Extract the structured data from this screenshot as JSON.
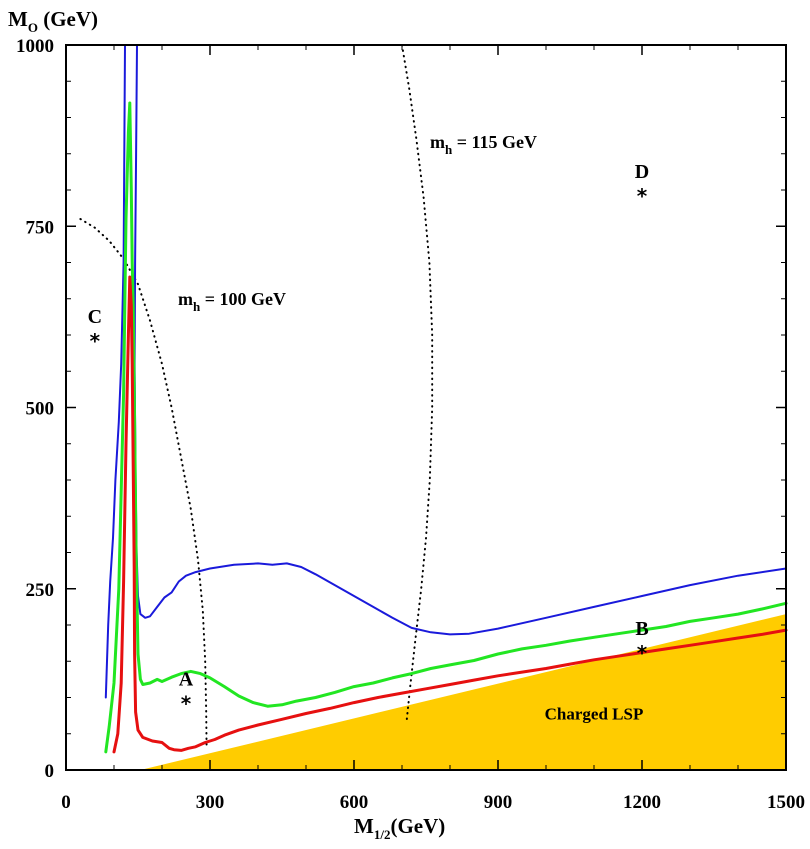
{
  "chart_data": {
    "type": "line",
    "xlabel": {
      "main": "M",
      "sub": "1/2",
      "unit": "(GeV)"
    },
    "ylabel": {
      "main": "M",
      "sub": "O",
      "unit": "(GeV)"
    },
    "xlim": [
      0,
      1500
    ],
    "ylim": [
      0,
      1000
    ],
    "xticks": [
      0,
      300,
      600,
      900,
      1200,
      1500
    ],
    "yticks": [
      0,
      250,
      500,
      750,
      1000
    ],
    "grid": false,
    "colors": {
      "blue": "#1a1adb",
      "green": "#22e622",
      "red": "#e61010",
      "fill": "#ffcc00",
      "dots": "#000000"
    },
    "series": [
      {
        "color": "#1a1adb",
        "segments": [
          [
            [
              83,
              100
            ],
            [
              88,
              200
            ],
            [
              92,
              260
            ],
            [
              98,
              320
            ],
            [
              103,
              400
            ],
            [
              110,
              480
            ],
            [
              115,
              560
            ],
            [
              120,
              700
            ],
            [
              123,
              1000
            ]
          ],
          [
            [
              148,
              1000
            ],
            [
              146,
              850
            ],
            [
              144,
              700
            ],
            [
              143,
              560
            ],
            [
              145,
              400
            ],
            [
              147,
              300
            ],
            [
              150,
              240
            ],
            [
              155,
              215
            ],
            [
              165,
              210
            ],
            [
              175,
              212
            ],
            [
              190,
              225
            ],
            [
              205,
              238
            ],
            [
              220,
              245
            ],
            [
              235,
              260
            ],
            [
              250,
              268
            ],
            [
              270,
              273
            ],
            [
              300,
              278
            ],
            [
              350,
              283
            ],
            [
              400,
              285
            ],
            [
              430,
              283
            ],
            [
              460,
              285
            ],
            [
              490,
              280
            ],
            [
              520,
              270
            ],
            [
              560,
              255
            ],
            [
              600,
              240
            ],
            [
              640,
              225
            ],
            [
              680,
              210
            ],
            [
              720,
              196
            ],
            [
              760,
              190
            ],
            [
              800,
              187
            ],
            [
              840,
              188
            ],
            [
              900,
              195
            ],
            [
              1000,
              210
            ],
            [
              1100,
              225
            ],
            [
              1200,
              240
            ],
            [
              1300,
              255
            ],
            [
              1400,
              268
            ],
            [
              1500,
              278
            ]
          ]
        ]
      },
      {
        "color": "#22e622",
        "segments": [
          [
            [
              83,
              25
            ],
            [
              90,
              60
            ],
            [
              100,
              120
            ],
            [
              110,
              250
            ],
            [
              120,
              520
            ],
            [
              125,
              760
            ],
            [
              130,
              880
            ],
            [
              133,
              920
            ],
            [
              136,
              800
            ],
            [
              138,
              700
            ],
            [
              140,
              640
            ],
            [
              143,
              480
            ],
            [
              146,
              300
            ],
            [
              150,
              160
            ],
            [
              155,
              125
            ],
            [
              160,
              118
            ],
            [
              175,
              120
            ],
            [
              190,
              125
            ],
            [
              200,
              122
            ],
            [
              220,
              128
            ],
            [
              240,
              133
            ],
            [
              260,
              136
            ],
            [
              280,
              133
            ],
            [
              300,
              127
            ],
            [
              330,
              115
            ],
            [
              360,
              102
            ],
            [
              390,
              93
            ],
            [
              420,
              88
            ],
            [
              450,
              90
            ],
            [
              480,
              95
            ],
            [
              520,
              100
            ],
            [
              560,
              107
            ],
            [
              600,
              115
            ],
            [
              640,
              120
            ],
            [
              680,
              127
            ],
            [
              720,
              133
            ],
            [
              760,
              140
            ],
            [
              800,
              145
            ],
            [
              850,
              151
            ],
            [
              900,
              160
            ],
            [
              950,
              167
            ],
            [
              1000,
              172
            ],
            [
              1050,
              178
            ],
            [
              1100,
              183
            ],
            [
              1150,
              188
            ],
            [
              1200,
              193
            ],
            [
              1250,
              198
            ],
            [
              1300,
              205
            ],
            [
              1350,
              210
            ],
            [
              1400,
              215
            ],
            [
              1450,
              222
            ],
            [
              1500,
              230
            ]
          ]
        ]
      },
      {
        "color": "#e61010",
        "segments": [
          [
            [
              100,
              25
            ],
            [
              108,
              50
            ],
            [
              115,
              120
            ],
            [
              120,
              260
            ],
            [
              125,
              450
            ],
            [
              130,
              600
            ],
            [
              133,
              680
            ],
            [
              136,
              640
            ],
            [
              138,
              560
            ],
            [
              140,
              420
            ],
            [
              142,
              280
            ],
            [
              143,
              160
            ],
            [
              145,
              80
            ],
            [
              150,
              55
            ],
            [
              160,
              45
            ],
            [
              180,
              40
            ],
            [
              200,
              38
            ],
            [
              215,
              30
            ],
            [
              225,
              28
            ],
            [
              240,
              27
            ],
            [
              255,
              30
            ],
            [
              270,
              32
            ],
            [
              290,
              38
            ],
            [
              310,
              42
            ],
            [
              330,
              48
            ],
            [
              360,
              55
            ],
            [
              400,
              62
            ],
            [
              450,
              70
            ],
            [
              500,
              78
            ],
            [
              550,
              85
            ],
            [
              600,
              93
            ],
            [
              650,
              100
            ],
            [
              700,
              106
            ],
            [
              750,
              112
            ],
            [
              800,
              118
            ],
            [
              850,
              124
            ],
            [
              900,
              130
            ],
            [
              950,
              135
            ],
            [
              1000,
              140
            ],
            [
              1050,
              146
            ],
            [
              1100,
              152
            ],
            [
              1150,
              157
            ],
            [
              1200,
              162
            ],
            [
              1250,
              167
            ],
            [
              1300,
              172
            ],
            [
              1350,
              177
            ],
            [
              1400,
              182
            ],
            [
              1450,
              187
            ],
            [
              1500,
              193
            ]
          ]
        ]
      }
    ],
    "contours": [
      {
        "label_main": "m",
        "label_sub": "h",
        "label_rest": "= 100 GeV",
        "points": [
          [
            30,
            760
          ],
          [
            60,
            748
          ],
          [
            90,
            730
          ],
          [
            120,
            705
          ],
          [
            150,
            670
          ],
          [
            175,
            620
          ],
          [
            200,
            560
          ],
          [
            220,
            500
          ],
          [
            240,
            430
          ],
          [
            260,
            360
          ],
          [
            275,
            290
          ],
          [
            285,
            220
          ],
          [
            290,
            150
          ],
          [
            292,
            80
          ],
          [
            293,
            30
          ]
        ]
      },
      {
        "label_main": "m",
        "label_sub": "h",
        "label_rest": "= 115 GeV",
        "points": [
          [
            700,
            1000
          ],
          [
            715,
            940
          ],
          [
            730,
            870
          ],
          [
            745,
            790
          ],
          [
            757,
            700
          ],
          [
            763,
            600
          ],
          [
            763,
            500
          ],
          [
            758,
            400
          ],
          [
            750,
            320
          ],
          [
            740,
            250
          ],
          [
            728,
            180
          ],
          [
            718,
            120
          ],
          [
            710,
            70
          ]
        ]
      }
    ],
    "region": {
      "label": "Charged LSP",
      "polygon": [
        [
          155,
          0
        ],
        [
          1500,
          0
        ],
        [
          1500,
          215
        ],
        [
          155,
          0
        ]
      ]
    },
    "points": [
      {
        "name": "A",
        "x": 250,
        "y": 100
      },
      {
        "name": "B",
        "x": 1200,
        "y": 170
      },
      {
        "name": "C",
        "x": 60,
        "y": 600
      },
      {
        "name": "D",
        "x": 1200,
        "y": 800
      }
    ],
    "star_glyph": "*"
  }
}
